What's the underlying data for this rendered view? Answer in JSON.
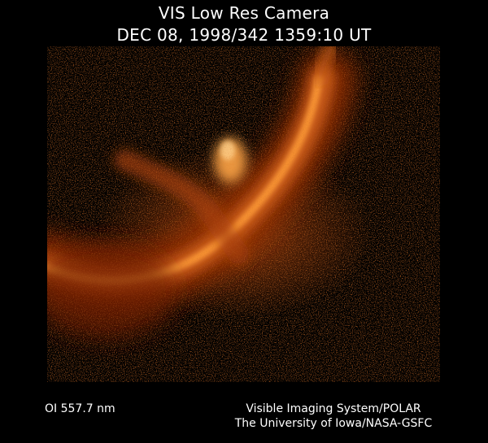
{
  "header": {
    "title": "VIS Low Res Camera",
    "timestamp": "DEC 08, 1998/342 1359:10 UT"
  },
  "footer": {
    "wavelength": "OI  557.7 nm",
    "instrument": "Visible Imaging System/POLAR",
    "institution": "The University of Iowa/NASA-GSFC"
  },
  "colors": {
    "background": "#000000",
    "aurora_core": "#ffb347",
    "aurora_mid": "#e0701a",
    "aurora_dim": "#8a2a05",
    "noise": "#7a1e04"
  }
}
